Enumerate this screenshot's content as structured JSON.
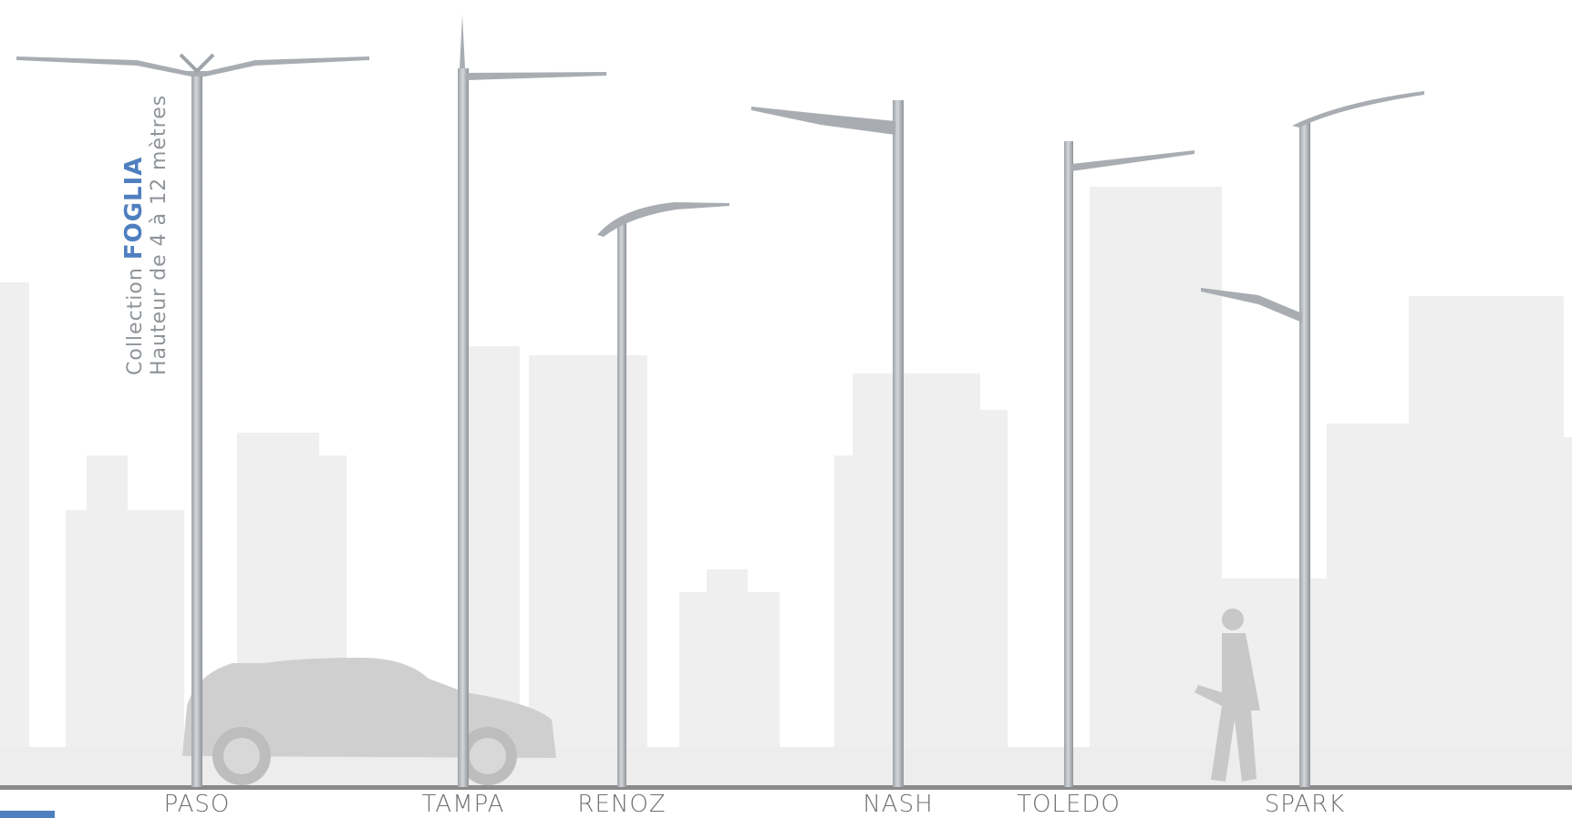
{
  "caption": {
    "collection": "Collection",
    "brand": "FOGLIA",
    "height_range": "Hauteur de 4 à 12 mètres"
  },
  "products": [
    {
      "name": "PASO"
    },
    {
      "name": "TAMPA"
    },
    {
      "name": "RENOZ"
    },
    {
      "name": "NASH"
    },
    {
      "name": "TOLEDO"
    },
    {
      "name": "SPARK"
    }
  ],
  "colors": {
    "brand": "#4f7fbf",
    "pole": "#b8bcc0",
    "ground": "#8a8a8a",
    "skyline": "#eeeeee",
    "corner": "#4f7fbf"
  }
}
